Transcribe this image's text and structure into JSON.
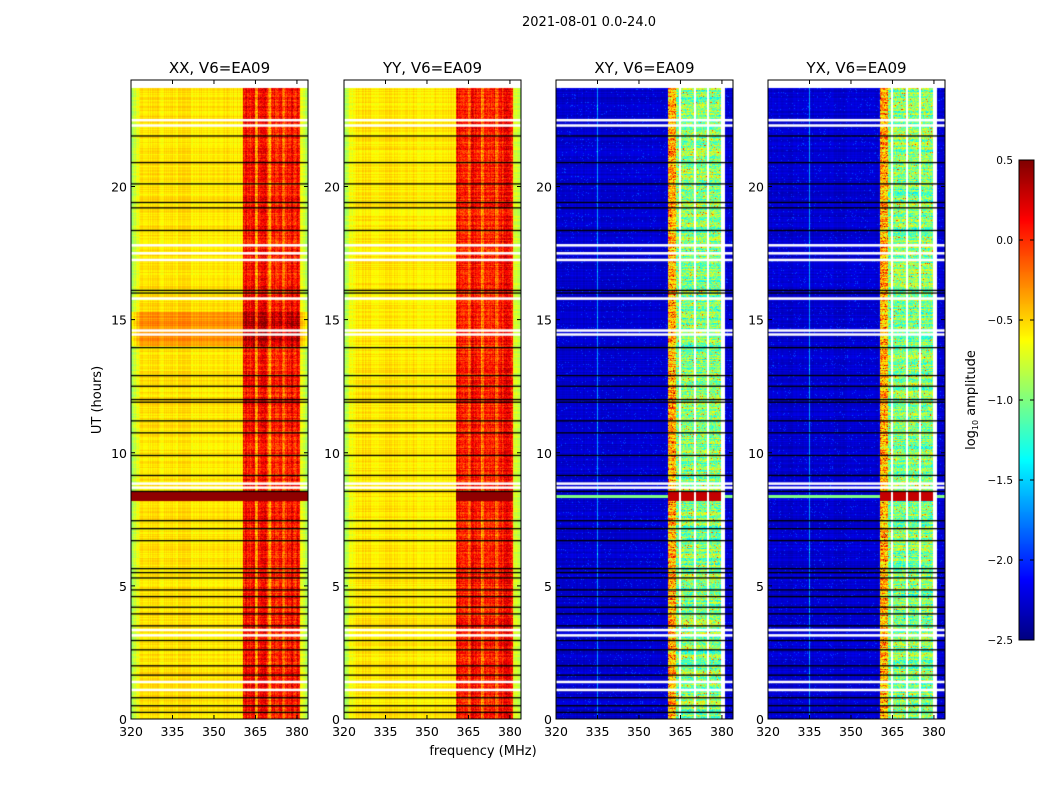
{
  "chart_data": {
    "type": "heatmap",
    "suptitle": "2021-08-01 0.0-24.0",
    "xlabel": "frequency (MHz)",
    "ylabel": "UT (hours)",
    "xlim": [
      320,
      384
    ],
    "ylim": [
      0,
      24
    ],
    "xticks": [
      320,
      335,
      350,
      365,
      380
    ],
    "yticks": [
      0,
      5,
      10,
      15,
      20
    ],
    "colormap": "jet",
    "colorbar": {
      "label": "log10 amplitude",
      "label_main": "log",
      "label_sub": "10",
      "label_rest": " amplitude",
      "vmin": -2.5,
      "vmax": 0.5,
      "ticks": [
        0.5,
        0.0,
        -0.5,
        -1.0,
        -1.5,
        -2.0,
        -2.5
      ],
      "tick_labels": [
        "0.5",
        "0.0",
        "−0.5",
        "−1.0",
        "−1.5",
        "−2.0",
        "−2.5"
      ]
    },
    "panels": [
      {
        "title": "XX, V6=EA09",
        "pol": "XX",
        "kind": "copol"
      },
      {
        "title": "YY, V6=EA09",
        "pol": "YY",
        "kind": "copol"
      },
      {
        "title": "XY, V6=EA09",
        "pol": "XY",
        "kind": "cross"
      },
      {
        "title": "YX, V6=EA09",
        "pol": "YX",
        "kind": "cross"
      }
    ],
    "data_extent_hours": [
      0,
      23.7
    ],
    "band_MHz": [
      360.5,
      381
    ],
    "background_log_amp": {
      "copol": -0.55,
      "cross": -2.3
    },
    "band_log_amp": {
      "copol": 0.1,
      "cross": -1.0
    },
    "flare_hours": [
      8.2,
      8.55
    ],
    "flagged_black_hours": [
      21.9,
      20.9,
      20.1,
      19.4,
      19.2,
      18.35,
      16.1,
      16.0,
      13.95,
      12.9,
      12.5,
      12.0,
      11.9,
      11.2,
      10.75,
      9.9,
      9.15,
      8.55,
      7.45,
      7.15,
      6.7,
      5.65,
      5.5,
      5.3,
      4.85,
      4.6,
      4.2,
      3.95,
      3.5,
      2.95,
      2.6,
      2.0,
      1.65,
      0.8,
      0.5,
      0.25
    ],
    "flagged_white_hours": [
      22.5,
      22.3,
      17.8,
      17.5,
      17.25,
      15.8,
      14.6,
      14.45,
      8.85,
      8.7,
      3.35,
      3.15,
      1.4,
      1.1
    ]
  }
}
